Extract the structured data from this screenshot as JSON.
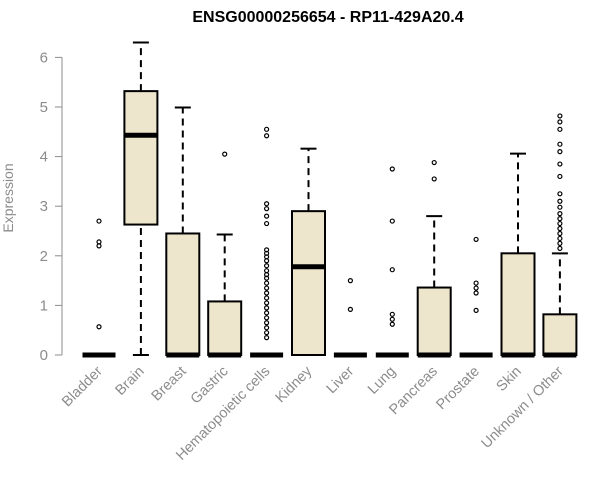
{
  "chart_data": {
    "type": "box",
    "title": "ENSG00000256654 - RP11-429A20.4",
    "xlabel": "",
    "ylabel": "Expression",
    "ylim": [
      0,
      6.3
    ],
    "yticks": [
      0,
      1,
      2,
      3,
      4,
      5,
      6
    ],
    "box_fill": "#ede6cc",
    "box_stroke": "#000000",
    "axis_color": "#8c8c8c",
    "categories": [
      "Bladder",
      "Brain",
      "Breast",
      "Gastric",
      "Hematopoietic cells",
      "Kidney",
      "Liver",
      "Lung",
      "Pancreas",
      "Prostate",
      "Skin",
      "Unknown / Other"
    ],
    "boxes": [
      {
        "category": "Bladder",
        "whisker_low": 0,
        "q1": 0,
        "median": 0,
        "q3": 0,
        "whisker_high": 0,
        "outliers": [
          0.57,
          2.2,
          2.28,
          2.7
        ]
      },
      {
        "category": "Brain",
        "whisker_low": 0,
        "q1": 2.63,
        "median": 4.43,
        "q3": 5.32,
        "whisker_high": 6.3,
        "outliers": []
      },
      {
        "category": "Breast",
        "whisker_low": 0,
        "q1": 0,
        "median": 0,
        "q3": 2.45,
        "whisker_high": 4.99,
        "outliers": []
      },
      {
        "category": "Gastric",
        "whisker_low": 0,
        "q1": 0,
        "median": 0,
        "q3": 1.08,
        "whisker_high": 2.43,
        "outliers": [
          4.05
        ]
      },
      {
        "category": "Hematopoietic cells",
        "whisker_low": 0,
        "q1": 0,
        "median": 0,
        "q3": 0,
        "whisker_high": 0,
        "outliers": [
          0.35,
          0.45,
          0.55,
          0.65,
          0.75,
          0.85,
          0.95,
          1.05,
          1.15,
          1.25,
          1.35,
          1.45,
          1.55,
          1.62,
          1.7,
          1.8,
          1.9,
          1.98,
          2.05,
          2.12,
          2.65,
          2.8,
          2.95,
          3.05,
          4.42,
          4.55
        ]
      },
      {
        "category": "Kidney",
        "whisker_low": 0,
        "q1": 0,
        "median": 1.78,
        "q3": 2.9,
        "whisker_high": 4.16,
        "outliers": []
      },
      {
        "category": "Liver",
        "whisker_low": 0,
        "q1": 0,
        "median": 0,
        "q3": 0,
        "whisker_high": 0,
        "outliers": [
          0.92,
          1.5
        ]
      },
      {
        "category": "Lung",
        "whisker_low": 0,
        "q1": 0,
        "median": 0,
        "q3": 0,
        "whisker_high": 0,
        "outliers": [
          0.62,
          0.72,
          0.82,
          1.72,
          2.7,
          3.75
        ]
      },
      {
        "category": "Pancreas",
        "whisker_low": 0,
        "q1": 0,
        "median": 0,
        "q3": 1.36,
        "whisker_high": 2.8,
        "outliers": [
          3.55,
          3.88
        ]
      },
      {
        "category": "Prostate",
        "whisker_low": 0,
        "q1": 0,
        "median": 0,
        "q3": 0,
        "whisker_high": 0,
        "outliers": [
          0.9,
          1.25,
          1.35,
          1.45,
          2.33
        ]
      },
      {
        "category": "Skin",
        "whisker_low": 0,
        "q1": 0,
        "median": 0,
        "q3": 2.05,
        "whisker_high": 4.06,
        "outliers": []
      },
      {
        "category": "Unknown / Other",
        "whisker_low": 0,
        "q1": 0,
        "median": 0,
        "q3": 0.82,
        "whisker_high": 2.05,
        "outliers": [
          2.15,
          2.25,
          2.35,
          2.45,
          2.55,
          2.65,
          2.75,
          2.85,
          2.98,
          3.1,
          3.25,
          3.6,
          3.85,
          4.1,
          4.25,
          4.55,
          4.7,
          4.82
        ]
      }
    ]
  }
}
